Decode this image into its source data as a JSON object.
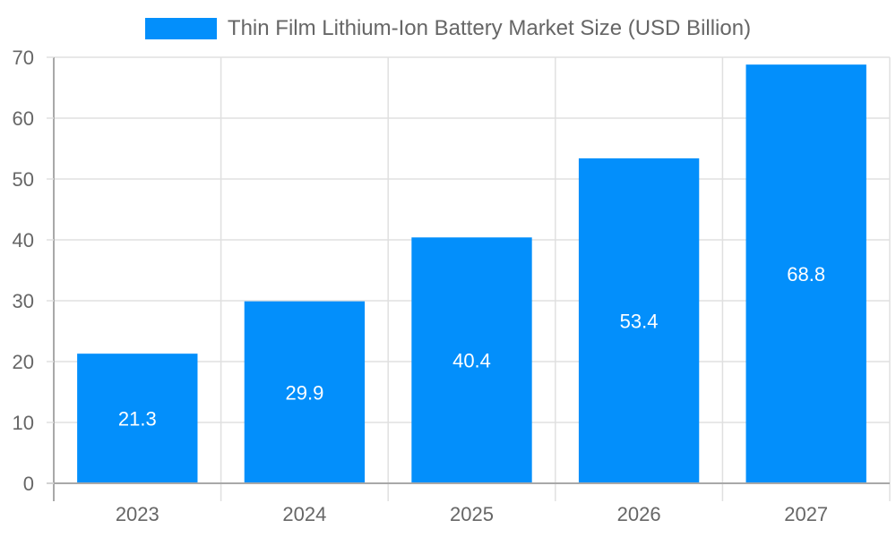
{
  "chart_data": {
    "type": "bar",
    "title": "",
    "categories": [
      "2023",
      "2024",
      "2025",
      "2026",
      "2027"
    ],
    "series": [
      {
        "name": "Thin Film Lithium-Ion Battery Market Size (USD Billion)",
        "values": [
          21.3,
          29.9,
          40.4,
          53.4,
          68.8
        ],
        "color": "#038ffb"
      }
    ],
    "xlabel": "",
    "ylabel": "",
    "ylim": [
      0,
      70
    ],
    "yticks": [
      0,
      10,
      20,
      30,
      40,
      50,
      60,
      70
    ],
    "grid": true,
    "legend_position": "top",
    "data_labels": [
      "21.3",
      "29.9",
      "40.4",
      "53.4",
      "68.8"
    ]
  },
  "legend": {
    "label": "Thin Film Lithium-Ion Battery Market Size (USD Billion)",
    "color": "#038ffb"
  },
  "colors": {
    "bar": "#038ffb",
    "grid": "#e0e0e0",
    "axis": "#a8a8a8",
    "tick_text": "#666666",
    "data_label": "#ffffff"
  }
}
